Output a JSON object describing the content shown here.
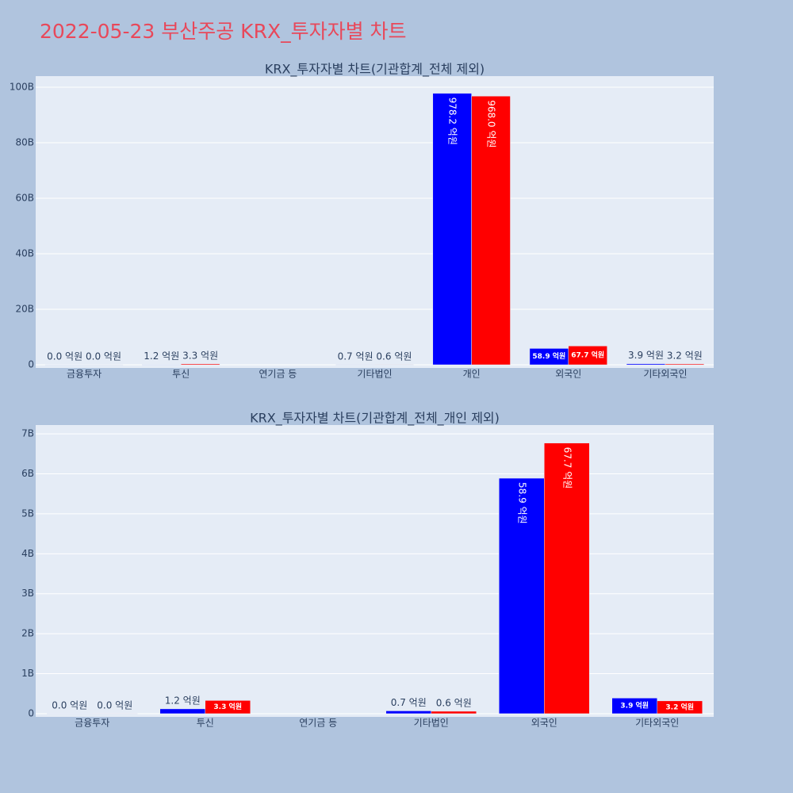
{
  "title": "2022-05-23 부산주공 KRX_투자자별 차트",
  "chart_data": [
    {
      "type": "bar",
      "title": "KRX_투자자별 차트(기관합계_전체 제외)",
      "categories": [
        "금융투자",
        "투신",
        "연기금 등",
        "기타법인",
        "개인",
        "외국인",
        "기타외국인"
      ],
      "series": [
        {
          "color": "#0000ff",
          "values": [
            0,
            120000000,
            null,
            70000000,
            97820000000,
            5890000000,
            390000000
          ],
          "value_labels": [
            "0.0 억원",
            "1.2 억원",
            null,
            "0.7 억원",
            "978.2 억원",
            "58.9 억원",
            "3.9 억원"
          ]
        },
        {
          "color": "#ff0000",
          "values": [
            0,
            330000000,
            null,
            60000000,
            96800000000,
            6770000000,
            320000000
          ],
          "value_labels": [
            "0.0 억원",
            "3.3 억원",
            null,
            "0.6 억원",
            "968.0 억원",
            "67.7 억원",
            "3.2 억원"
          ]
        }
      ],
      "ylim": [
        -1140000000,
        104000000000
      ],
      "yticks": [
        0,
        {
          "value": 20000000000,
          "label": "20B"
        },
        {
          "value": 40000000000,
          "label": "40B"
        },
        {
          "value": 60000000000,
          "label": "60B"
        },
        {
          "value": 80000000000,
          "label": "80B"
        },
        {
          "value": 100000000000,
          "label": "100B"
        }
      ],
      "grid": true
    },
    {
      "type": "bar",
      "title": "KRX_투자자별 차트(기관합계_전체_개인 제외)",
      "categories": [
        "금융투자",
        "투신",
        "연기금 등",
        "기타법인",
        "외국인",
        "기타외국인"
      ],
      "series": [
        {
          "color": "#0000ff",
          "values": [
            0,
            120000000,
            null,
            70000000,
            5890000000,
            390000000
          ],
          "value_labels": [
            "0.0 억원",
            "1.2 억원",
            null,
            "0.7 억원",
            "58.9 억원",
            "3.9 억원"
          ]
        },
        {
          "color": "#ff0000",
          "values": [
            0,
            330000000,
            null,
            60000000,
            6770000000,
            320000000
          ],
          "value_labels": [
            "0.0 억원",
            "3.3 억원",
            null,
            "0.6 억원",
            "67.7 억원",
            "3.2 억원"
          ]
        }
      ],
      "ylim": [
        -80000000,
        7220000000
      ],
      "yticks": [
        0,
        {
          "value": 1000000000,
          "label": "1B"
        },
        {
          "value": 2000000000,
          "label": "2B"
        },
        {
          "value": 3000000000,
          "label": "3B"
        },
        {
          "value": 4000000000,
          "label": "4B"
        },
        {
          "value": 5000000000,
          "label": "5B"
        },
        {
          "value": 6000000000,
          "label": "6B"
        },
        {
          "value": 7000000000,
          "label": "7B"
        }
      ],
      "grid": true
    }
  ]
}
